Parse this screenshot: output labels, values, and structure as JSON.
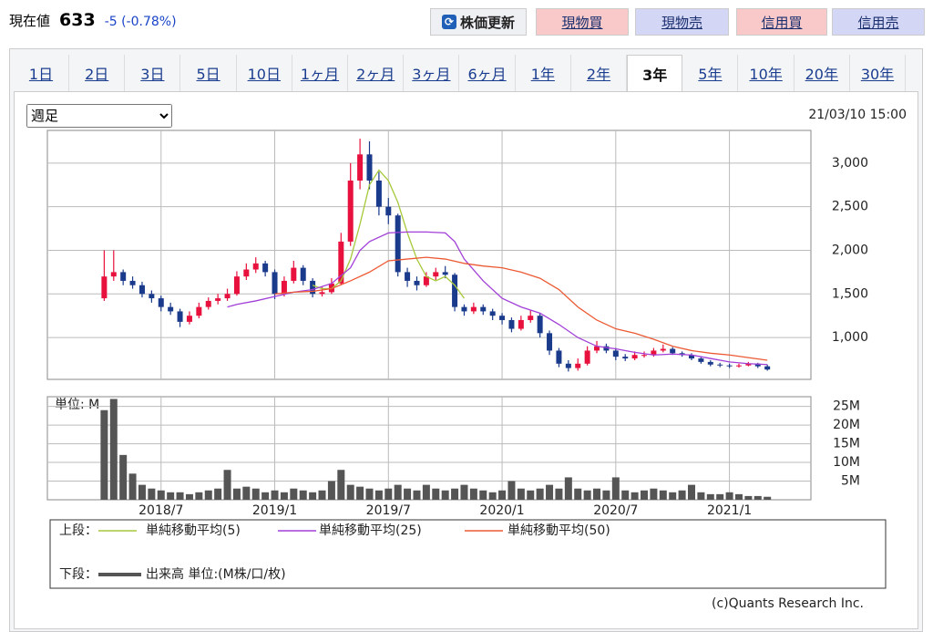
{
  "header": {
    "label": "現在値",
    "price": "633",
    "change": "-5 (-0.78%)",
    "refresh": "株価更新",
    "buttons": [
      "現物買",
      "現物売",
      "信用買",
      "信用売"
    ]
  },
  "tabs": [
    "1日",
    "2日",
    "3日",
    "5日",
    "10日",
    "1ヶ月",
    "2ヶ月",
    "3ヶ月",
    "6ヶ月",
    "1年",
    "2年",
    "3年",
    "5年",
    "10年",
    "20年",
    "30年"
  ],
  "selected_tab_index": 11,
  "controls": {
    "interval": "週足",
    "timestamp": "21/03/10 15:00"
  },
  "chart_data": [
    {
      "type": "candlestick",
      "up_color": "#e8103c",
      "down_color": "#1a3a8c",
      "grid": true,
      "xlim": [
        0,
        40.3
      ],
      "ylim": [
        520,
        3375
      ],
      "yticks": [
        {
          "value": 1000,
          "label": "1,000"
        },
        {
          "value": 1500,
          "label": "1,500"
        },
        {
          "value": 2000,
          "label": "2,000"
        },
        {
          "value": 2500,
          "label": "2,500"
        },
        {
          "value": 3000,
          "label": "3,000"
        }
      ],
      "x": [
        3,
        3.5,
        4,
        4.5,
        5,
        5.5,
        6,
        6.5,
        7,
        7.5,
        8,
        8.5,
        9,
        9.5,
        10,
        10.5,
        11,
        11.5,
        12,
        12.5,
        13,
        13.5,
        14,
        14.5,
        15,
        15.5,
        16,
        16.5,
        17,
        17.5,
        18,
        18.5,
        19,
        19.5,
        20,
        20.5,
        21,
        21.5,
        22,
        22.5,
        23,
        23.5,
        24,
        24.5,
        25,
        25.5,
        26,
        26.5,
        27,
        27.5,
        28,
        28.5,
        29,
        29.5,
        30,
        30.5,
        31,
        31.5,
        32,
        32.5,
        33,
        33.5,
        34,
        34.5,
        35,
        35.5,
        36,
        36.5,
        37,
        37.5,
        38
      ],
      "ohlc": [
        [
          1450,
          2000,
          1420,
          1700
        ],
        [
          1700,
          2000,
          1650,
          1750
        ],
        [
          1750,
          1780,
          1600,
          1650
        ],
        [
          1650,
          1700,
          1560,
          1600
        ],
        [
          1600,
          1640,
          1460,
          1500
        ],
        [
          1500,
          1540,
          1400,
          1450
        ],
        [
          1450,
          1480,
          1300,
          1350
        ],
        [
          1350,
          1400,
          1260,
          1300
        ],
        [
          1300,
          1330,
          1120,
          1180
        ],
        [
          1180,
          1300,
          1150,
          1250
        ],
        [
          1250,
          1400,
          1220,
          1350
        ],
        [
          1350,
          1460,
          1320,
          1420
        ],
        [
          1420,
          1500,
          1380,
          1450
        ],
        [
          1450,
          1560,
          1420,
          1500
        ],
        [
          1500,
          1760,
          1480,
          1700
        ],
        [
          1700,
          1850,
          1660,
          1780
        ],
        [
          1780,
          1920,
          1740,
          1850
        ],
        [
          1850,
          1880,
          1700,
          1750
        ],
        [
          1750,
          1780,
          1440,
          1500
        ],
        [
          1500,
          1700,
          1470,
          1650
        ],
        [
          1650,
          1880,
          1620,
          1800
        ],
        [
          1800,
          1830,
          1600,
          1650
        ],
        [
          1650,
          1680,
          1460,
          1500
        ],
        [
          1500,
          1580,
          1470,
          1520
        ],
        [
          1520,
          1680,
          1500,
          1620
        ],
        [
          1620,
          2200,
          1600,
          2100
        ],
        [
          2100,
          3000,
          2050,
          2800
        ],
        [
          2800,
          3280,
          2700,
          3100
        ],
        [
          3100,
          3250,
          2700,
          2800
        ],
        [
          2800,
          2900,
          2400,
          2500
        ],
        [
          2500,
          2600,
          2300,
          2400
        ],
        [
          2400,
          2420,
          1700,
          1750
        ],
        [
          1750,
          1800,
          1580,
          1650
        ],
        [
          1650,
          1700,
          1540,
          1600
        ],
        [
          1600,
          1750,
          1580,
          1700
        ],
        [
          1700,
          1800,
          1660,
          1750
        ],
        [
          1750,
          1820,
          1680,
          1720
        ],
        [
          1720,
          1740,
          1300,
          1350
        ],
        [
          1350,
          1380,
          1250,
          1300
        ],
        [
          1300,
          1400,
          1270,
          1350
        ],
        [
          1350,
          1380,
          1260,
          1300
        ],
        [
          1300,
          1330,
          1200,
          1250
        ],
        [
          1250,
          1280,
          1150,
          1200
        ],
        [
          1200,
          1230,
          1060,
          1100
        ],
        [
          1100,
          1250,
          1080,
          1200
        ],
        [
          1200,
          1320,
          1170,
          1250
        ],
        [
          1250,
          1280,
          1000,
          1050
        ],
        [
          1050,
          1080,
          800,
          850
        ],
        [
          850,
          880,
          660,
          700
        ],
        [
          700,
          740,
          610,
          650
        ],
        [
          650,
          760,
          620,
          700
        ],
        [
          700,
          900,
          680,
          850
        ],
        [
          850,
          960,
          820,
          900
        ],
        [
          900,
          930,
          820,
          850
        ],
        [
          850,
          880,
          740,
          780
        ],
        [
          780,
          810,
          730,
          760
        ],
        [
          760,
          840,
          740,
          800
        ],
        [
          800,
          840,
          770,
          800
        ],
        [
          800,
          880,
          780,
          850
        ],
        [
          850,
          920,
          830,
          870
        ],
        [
          870,
          890,
          800,
          820
        ],
        [
          820,
          840,
          780,
          800
        ],
        [
          800,
          820,
          740,
          760
        ],
        [
          760,
          780,
          700,
          720
        ],
        [
          720,
          740,
          670,
          690
        ],
        [
          690,
          710,
          660,
          680
        ],
        [
          680,
          700,
          650,
          670
        ],
        [
          670,
          700,
          655,
          680
        ],
        [
          680,
          720,
          670,
          700
        ],
        [
          700,
          710,
          650,
          670
        ],
        [
          670,
          690,
          620,
          633
        ]
      ],
      "series": [
        {
          "name": "単純移動平均(5)",
          "color": "#a6c93a",
          "x": [
            14,
            14.5,
            15,
            15.5,
            16,
            16.5,
            17,
            17.5,
            18,
            18.5,
            19,
            19.5,
            20,
            20.5,
            21,
            21.5,
            22
          ],
          "values": [
            1600,
            1560,
            1560,
            1650,
            1900,
            2300,
            2750,
            2920,
            2800,
            2550,
            2200,
            1900,
            1700,
            1650,
            1700,
            1600,
            1450
          ]
        },
        {
          "name": "単純移動平均(25)",
          "color": "#a23fd8",
          "x": [
            9.5,
            10,
            11,
            12,
            13,
            14,
            15,
            16,
            16.5,
            17,
            18,
            19,
            20,
            21,
            21.5,
            22,
            23,
            24,
            25,
            26,
            27,
            28,
            29,
            30,
            31,
            32,
            33,
            34,
            35,
            36,
            37,
            38
          ],
          "values": [
            1350,
            1380,
            1420,
            1470,
            1520,
            1550,
            1620,
            1800,
            2000,
            2100,
            2200,
            2210,
            2210,
            2200,
            2100,
            1900,
            1650,
            1450,
            1350,
            1280,
            1150,
            1000,
            900,
            870,
            830,
            800,
            810,
            800,
            760,
            720,
            700,
            690
          ]
        },
        {
          "name": "単純移動平均(50)",
          "color": "#ec5a34",
          "x": [
            12,
            13,
            14,
            15,
            16,
            17,
            18,
            19,
            20,
            21,
            22,
            23,
            24,
            25,
            26,
            27,
            28,
            29,
            30,
            31,
            32,
            33,
            34,
            35,
            36,
            37,
            38
          ],
          "values": [
            1500,
            1520,
            1530,
            1560,
            1650,
            1750,
            1880,
            1900,
            1920,
            1900,
            1850,
            1820,
            1800,
            1750,
            1680,
            1550,
            1350,
            1200,
            1100,
            1050,
            980,
            900,
            850,
            820,
            800,
            770,
            740
          ]
        }
      ]
    },
    {
      "type": "bar",
      "unit_label": "単位: M",
      "grid": true,
      "xlim": [
        0,
        40.3
      ],
      "ylim": [
        0,
        27.6
      ],
      "yticks": [
        {
          "value": 5,
          "label": "5M"
        },
        {
          "value": 10,
          "label": "10M"
        },
        {
          "value": 15,
          "label": "15M"
        },
        {
          "value": 20,
          "label": "20M"
        },
        {
          "value": 25,
          "label": "25M"
        }
      ],
      "xticks": [
        {
          "value": 6,
          "label": "2018/7"
        },
        {
          "value": 12,
          "label": "2019/1"
        },
        {
          "value": 18,
          "label": "2019/7"
        },
        {
          "value": 24,
          "label": "2020/1"
        },
        {
          "value": 30,
          "label": "2020/7"
        },
        {
          "value": 36,
          "label": "2021/1"
        }
      ],
      "x": [
        3,
        3.5,
        4,
        4.5,
        5,
        5.5,
        6,
        6.5,
        7,
        7.5,
        8,
        8.5,
        9,
        9.5,
        10,
        10.5,
        11,
        11.5,
        12,
        12.5,
        13,
        13.5,
        14,
        14.5,
        15,
        15.5,
        16,
        16.5,
        17,
        17.5,
        18,
        18.5,
        19,
        19.5,
        20,
        20.5,
        21,
        21.5,
        22,
        22.5,
        23,
        23.5,
        24,
        24.5,
        25,
        25.5,
        26,
        26.5,
        27,
        27.5,
        28,
        28.5,
        29,
        29.5,
        30,
        30.5,
        31,
        31.5,
        32,
        32.5,
        33,
        33.5,
        34,
        34.5,
        35,
        35.5,
        36,
        36.5,
        37,
        37.5,
        38
      ],
      "series": [
        {
          "name": "出来高 単位:(M株/口/枚)",
          "color": "#555555",
          "values": [
            24,
            27,
            12,
            7,
            4,
            3,
            2.5,
            2,
            2,
            1.5,
            2,
            2.5,
            3,
            8,
            3,
            3.5,
            3,
            2,
            2.5,
            2,
            3,
            2.5,
            2,
            2.5,
            5,
            8,
            4,
            3.5,
            3,
            2.5,
            3,
            4,
            3,
            2.5,
            4,
            3,
            2.5,
            3,
            4,
            3,
            2.5,
            2,
            2.5,
            5,
            3,
            2.5,
            3,
            4,
            3,
            6,
            3,
            2.5,
            3,
            2.5,
            6,
            2.5,
            2,
            2.5,
            3,
            2.5,
            2,
            2.5,
            4,
            2,
            1.5,
            1.5,
            2,
            1.5,
            1,
            1,
            0.8
          ]
        }
      ]
    }
  ],
  "legend": {
    "upper_label": "上段：",
    "lower_label": "下段："
  },
  "copyright": "(c)Quants Research Inc."
}
